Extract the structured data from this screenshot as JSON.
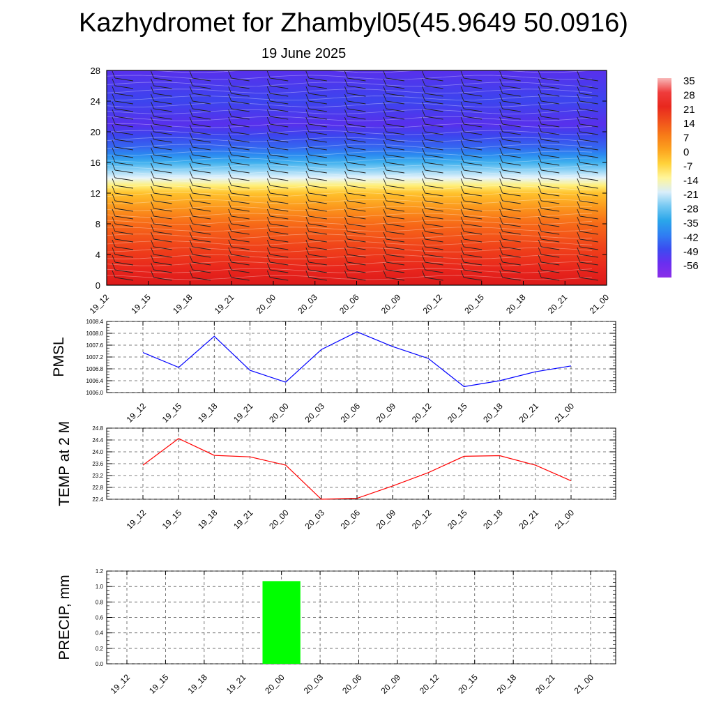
{
  "header": {
    "title": "Kazhydromet for Zhambyl05(45.9649 50.0916)",
    "subtitle": "19 June 2025"
  },
  "time_labels": [
    "19_12",
    "19_15",
    "19_18",
    "19_21",
    "20_00",
    "20_03",
    "20_06",
    "20_09",
    "20_12",
    "20_15",
    "20_18",
    "20_21",
    "21_00"
  ],
  "chart_data": [
    {
      "type": "heatmap",
      "title": "Kazhydromet for Zhambyl05(45.9649 50.0916)",
      "subtitle": "19 June 2025",
      "x": [
        "19_12",
        "19_15",
        "19_18",
        "19_21",
        "20_00",
        "20_03",
        "20_06",
        "20_09",
        "20_12",
        "20_15",
        "20_18",
        "20_21",
        "21_00"
      ],
      "ylim": [
        0,
        28
      ],
      "yticks": [
        0,
        4,
        8,
        12,
        16,
        20,
        24,
        28
      ],
      "colorbar": {
        "labels": [
          "35",
          "28",
          "21",
          "14",
          "7",
          "0",
          "-7",
          "-14",
          "-21",
          "-28",
          "-35",
          "-42",
          "-49",
          "-56"
        ],
        "colors": [
          "#f8b8b8",
          "#ef3c3c",
          "#e8281e",
          "#f0501c",
          "#f77a18",
          "#fca21e",
          "#ffd23a",
          "#fff59a",
          "#d9eefa",
          "#74c8f2",
          "#2aa6ea",
          "#2f7ff2",
          "#3b4cf0",
          "#6a2ef0",
          "#8a2ee8"
        ]
      },
      "profile": [
        {
          "level": 0,
          "value": 35
        },
        {
          "level": 2,
          "value": 30
        },
        {
          "level": 5,
          "value": 21
        },
        {
          "level": 8,
          "value": 14
        },
        {
          "level": 10,
          "value": 7
        },
        {
          "level": 12,
          "value": 0
        },
        {
          "level": 13,
          "value": -7
        },
        {
          "level": 14,
          "value": -14
        },
        {
          "level": 15,
          "value": -21
        },
        {
          "level": 16,
          "value": -28
        },
        {
          "level": 17,
          "value": -35
        },
        {
          "level": 18,
          "value": -42
        },
        {
          "level": 19.5,
          "value": -49
        },
        {
          "level": 21,
          "value": -56
        },
        {
          "level": 24,
          "value": -52
        },
        {
          "level": 28,
          "value": -58
        }
      ],
      "wind_barbs": true
    },
    {
      "type": "line",
      "ylabel": "PMSL",
      "x": [
        "19_12",
        "19_15",
        "19_18",
        "19_21",
        "20_00",
        "20_03",
        "20_06",
        "20_09",
        "20_12",
        "20_15",
        "20_18",
        "20_21",
        "21_00"
      ],
      "ylim": [
        1006.0,
        1008.4
      ],
      "yticks": [
        "1006.0",
        "1006.4",
        "1006.8",
        "1007.2",
        "1007.6",
        "1008.0",
        "1008.4"
      ],
      "series": [
        {
          "color": "#0000ff",
          "values": [
            1007.35,
            1006.85,
            1007.9,
            1006.75,
            1006.35,
            1007.45,
            1008.05,
            1007.55,
            1007.15,
            1006.2,
            1006.4,
            1006.7,
            1006.9
          ]
        }
      ]
    },
    {
      "type": "line",
      "ylabel": "TEMP at 2 M",
      "x": [
        "19_12",
        "19_15",
        "19_18",
        "19_21",
        "20_00",
        "20_03",
        "20_06",
        "20_09",
        "20_12",
        "20_15",
        "20_18",
        "20_21",
        "21_00"
      ],
      "ylim": [
        22.4,
        24.8
      ],
      "yticks": [
        "22.4",
        "22.8",
        "23.2",
        "23.6",
        "24.0",
        "24.4",
        "24.8"
      ],
      "series": [
        {
          "color": "#ff0000",
          "values": [
            23.55,
            24.45,
            23.88,
            23.83,
            23.55,
            22.4,
            22.43,
            22.85,
            23.3,
            23.85,
            23.87,
            23.55,
            23.02
          ]
        }
      ]
    },
    {
      "type": "bar",
      "ylabel": "PRECIP, mm",
      "x": [
        "19_12",
        "19_15",
        "19_18",
        "19_21",
        "20_00",
        "20_03",
        "20_06",
        "20_09",
        "20_12",
        "20_15",
        "20_18",
        "20_21",
        "21_00"
      ],
      "ylim": [
        0.0,
        1.2
      ],
      "yticks": [
        "0.0",
        "0.2",
        "0.4",
        "0.6",
        "0.8",
        "1.0",
        "1.2"
      ],
      "series": [
        {
          "color": "#00ff00",
          "values": [
            0,
            0,
            0,
            0,
            1.07,
            0,
            0,
            0,
            0,
            0,
            0,
            0,
            0
          ]
        }
      ]
    }
  ]
}
